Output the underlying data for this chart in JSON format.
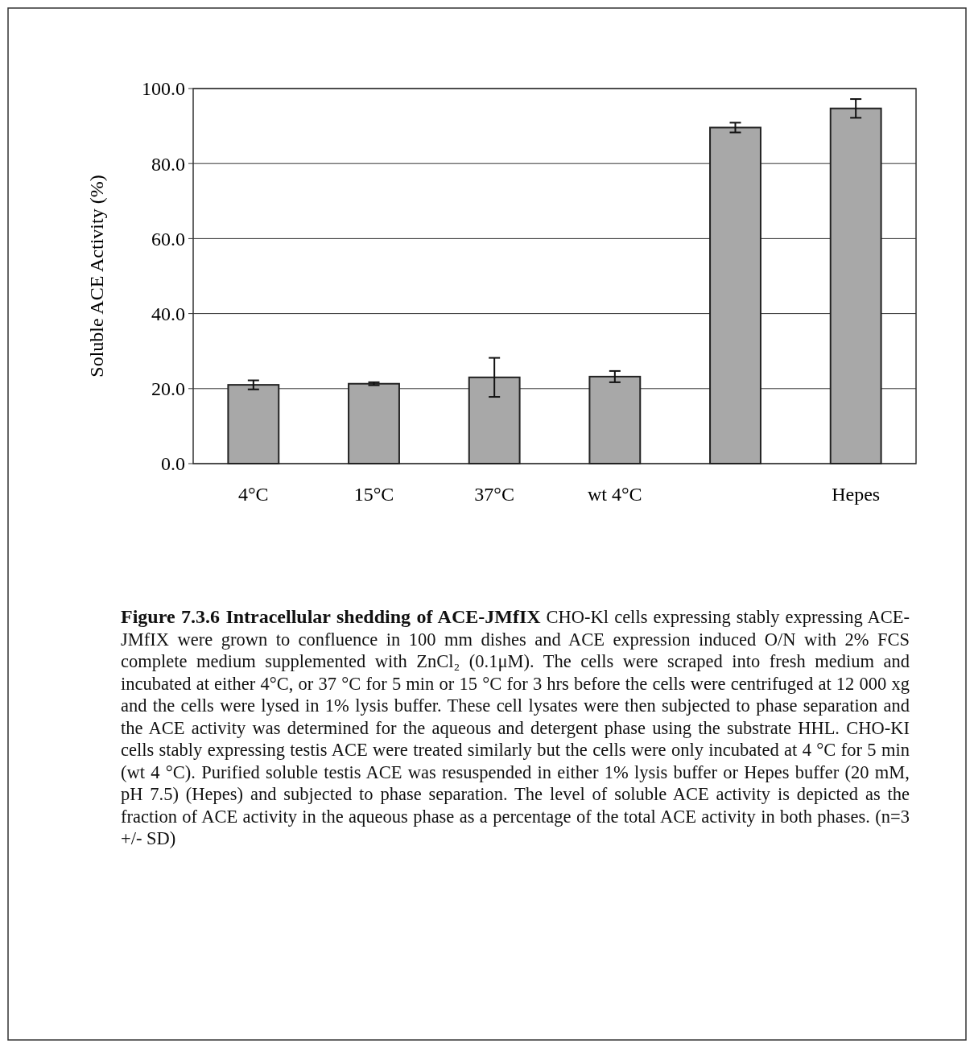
{
  "chart_data": {
    "type": "bar",
    "title": "Figure 7.3.6 Intracellular shedding of ACE-JMfIX",
    "ylabel": "Soluble ACE Activity (%)",
    "categories": [
      "4°C",
      "15°C",
      "37°C",
      "wt 4°C",
      null,
      "Hepes"
    ],
    "values": [
      21.0,
      21.3,
      23.0,
      23.2,
      89.6,
      94.7
    ],
    "errors": [
      1.2,
      0.4,
      5.2,
      1.5,
      1.3,
      2.5
    ],
    "color": "#a8a8a8",
    "ylim": [
      0,
      100
    ],
    "yticks": [
      {
        "value": 0,
        "label": "0.0"
      },
      {
        "value": 20,
        "label": "20.0"
      },
      {
        "value": 40,
        "label": "40.0"
      },
      {
        "value": 60,
        "label": "60.0"
      },
      {
        "value": 80,
        "label": "80.0"
      },
      {
        "value": 100,
        "label": "100.0"
      }
    ],
    "grid": "y",
    "annotations": [
      "CHO-Kl cells expressing stably expressing ACE-JMfIX were grown to confluence in 100 mm dishes and ACE expression induced O/N with 2% FCS complete medium supplemented with ZnCl₂ (0.1μM). The cells were scraped into fresh medium and incubated at either 4°C, or 37 °C for 5 min or 15 °C for 3 hrs before the cells were centrifuged at 12 000 xg and the cells were lysed in 1% lysis buffer. These cell lysates were then subjected to phase separation and the ACE activity was determined for the aqueous and detergent phase using the substrate HHL. CHO-KI cells stably expressing testis ACE were treated similarly but the cells were only incubated at 4 °C for 5 min (wt 4 °C). Purified soluble testis ACE was resuspended in either 1% lysis buffer or Hepes buffer (20 mM, pH 7.5) (Hepes) and subjected to phase separation. The level of soluble ACE activity is depicted as the fraction of ACE activity in the aqueous phase as a percentage of the total ACE activity in both phases. (n=3 +/- SD)"
    ]
  }
}
